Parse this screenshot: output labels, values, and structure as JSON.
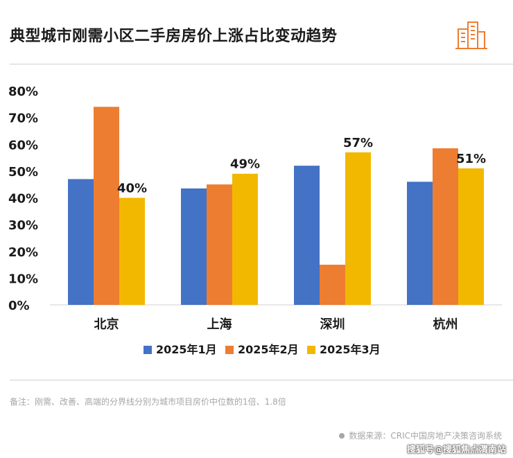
{
  "header": {
    "title": "典型城市刚需小区二手房房价上涨占比变动趋势"
  },
  "chart_data": {
    "type": "bar",
    "title": "典型城市刚需小区二手房房价上涨占比变动趋势",
    "categories": [
      "北京",
      "上海",
      "深圳",
      "杭州"
    ],
    "series": [
      {
        "name": "2025年1月",
        "color": "#4472c4",
        "values": [
          47,
          43.5,
          52,
          46
        ]
      },
      {
        "name": "2025年2月",
        "color": "#ed7d31",
        "values": [
          74,
          45,
          15,
          58.5
        ]
      },
      {
        "name": "2025年3月",
        "color": "#f2b800",
        "values": [
          40,
          49,
          57,
          51
        ]
      }
    ],
    "data_labels": [
      "40%",
      "49%",
      "57%",
      "51%"
    ],
    "y_ticks": [
      "0%",
      "10%",
      "20%",
      "30%",
      "40%",
      "50%",
      "60%",
      "70%",
      "80%"
    ],
    "ylim": [
      0,
      80
    ],
    "xlabel": "",
    "ylabel": "",
    "legend_position": "bottom"
  },
  "footer": {
    "note": "备注：刚需、改善、高端的分界线分别为城市项目房价中位数的1倍、1.8倍",
    "source": "数据来源：CRIC中国房地产决策咨询系统",
    "watermark": "搜狐号@搜狐焦点渭南站"
  }
}
